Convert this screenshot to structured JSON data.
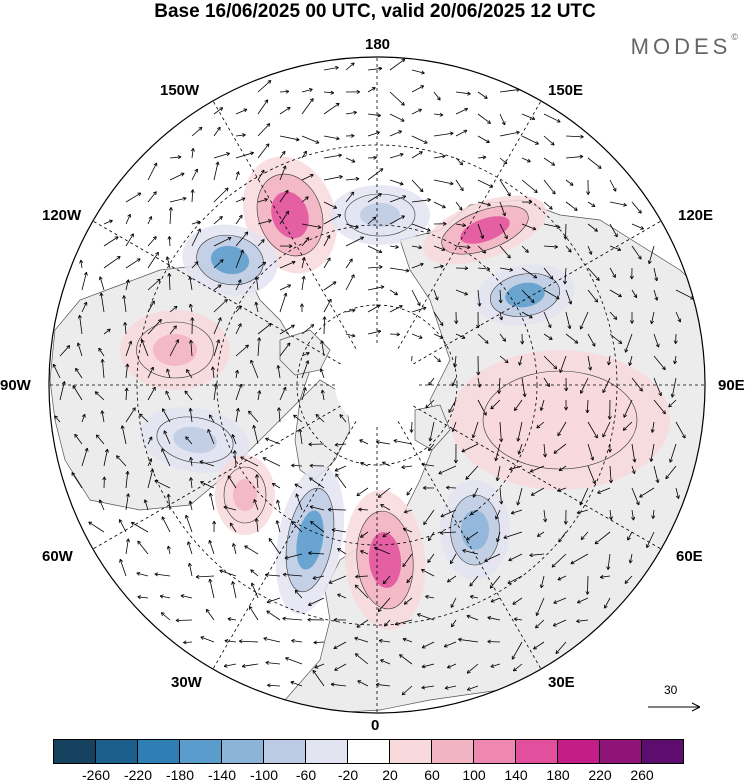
{
  "title": "Base 16/06/2025 00 UTC, valid 20/06/2025 12 UTC",
  "brand": {
    "name": "MODES",
    "mark": "©"
  },
  "map": {
    "projection": "north polar stereographic",
    "longitude_labels": [
      "180",
      "150E",
      "120E",
      "90E",
      "60E",
      "30E",
      "0",
      "30W",
      "60W",
      "90W",
      "120W",
      "150W"
    ],
    "vector_scale": {
      "value": "30",
      "icon": "arrow-right-icon"
    },
    "colors": {
      "land": "#ececec",
      "ocean": "#ffffff",
      "coast": "#555555",
      "grid": "#000000",
      "arrow": "#000000"
    },
    "anomaly_features": [
      {
        "name": "pink-lobe-pacific",
        "sign": "positive",
        "level": 160
      },
      {
        "name": "blue-lobe-alaska",
        "sign": "negative",
        "level": -140
      },
      {
        "name": "blue-lobe-bering",
        "sign": "negative",
        "level": -80
      },
      {
        "name": "pink-lobe-siberia",
        "sign": "positive",
        "level": 150
      },
      {
        "name": "blue-lobe-eastsiberia",
        "sign": "negative",
        "level": -150
      },
      {
        "name": "pink-lobe-hudson",
        "sign": "positive",
        "level": 90
      },
      {
        "name": "blue-lobe-greenland",
        "sign": "negative",
        "level": -90
      },
      {
        "name": "pink-lobe-atlantic",
        "sign": "positive",
        "level": 80
      },
      {
        "name": "blue-lobe-northatlantic",
        "sign": "negative",
        "level": -160
      },
      {
        "name": "pink-lobe-europe",
        "sign": "positive",
        "level": 160
      },
      {
        "name": "blue-lobe-westrussia",
        "sign": "negative",
        "level": -110
      },
      {
        "name": "pink-lobe-centralasia",
        "sign": "positive",
        "level": 60
      }
    ]
  },
  "colorbar": {
    "labels": [
      "-260",
      "-220",
      "-180",
      "-140",
      "-100",
      "-60",
      "-20",
      "20",
      "60",
      "100",
      "140",
      "180",
      "220",
      "260"
    ],
    "colors": [
      "#14425f",
      "#1c5e8c",
      "#2f7fb4",
      "#5a9ccb",
      "#8cb4d9",
      "#bccbe3",
      "#e3e4f1",
      "#ffffff",
      "#f8d9dc",
      "#f2b3c2",
      "#ee88b0",
      "#e24f9c",
      "#c31d88",
      "#8e1477",
      "#5c0d6e"
    ]
  }
}
